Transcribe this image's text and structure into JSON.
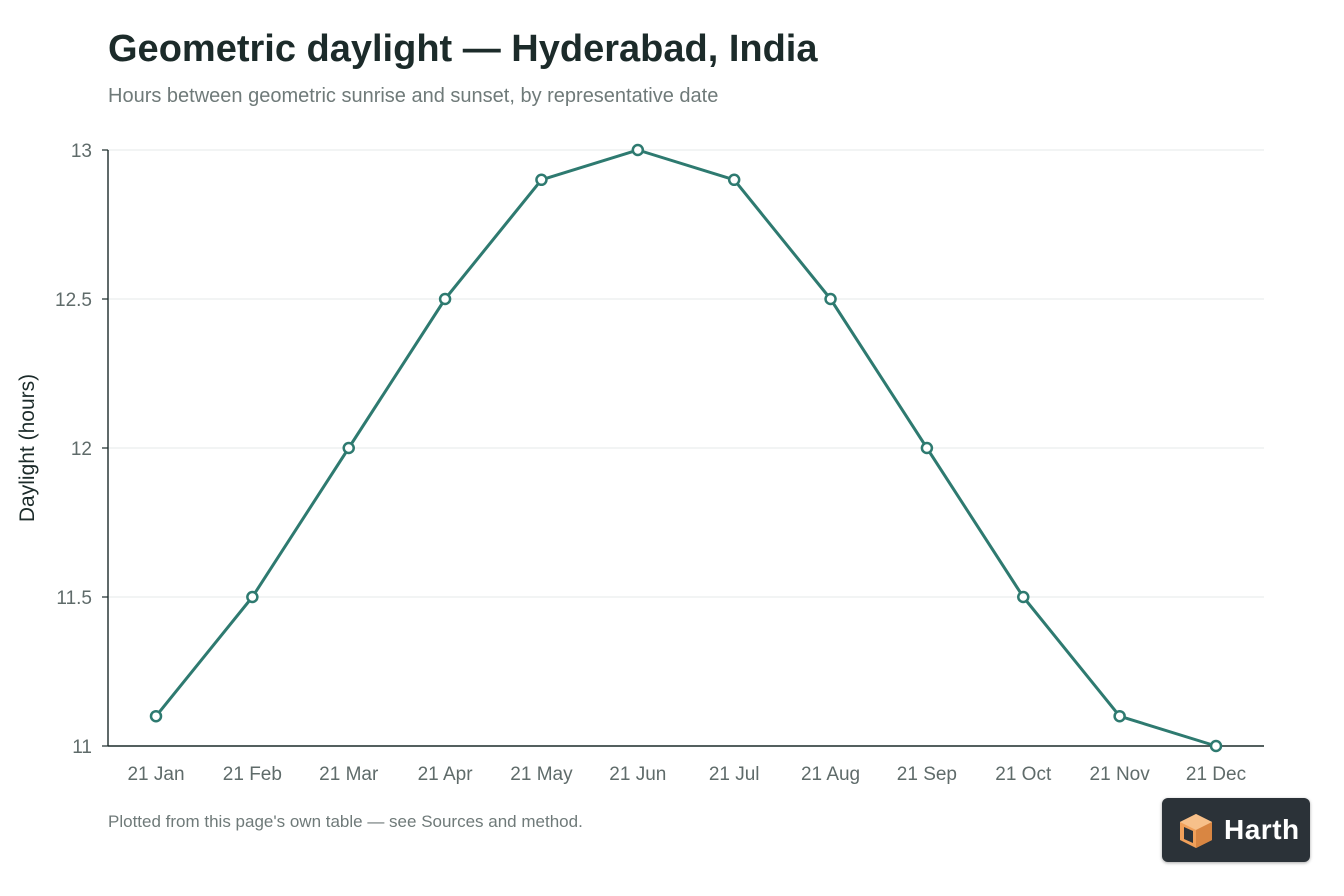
{
  "title": "Geometric daylight — Hyderabad, India",
  "subtitle": "Hours between geometric sunrise and sunset, by representative date",
  "footnote": "Plotted from this page's own table — see Sources and method.",
  "badge": {
    "text": "Harth",
    "icon": "harth-cube-logo-icon",
    "background": "#2b3238",
    "accent": "#f0a05a"
  },
  "chart_data": {
    "type": "line",
    "categories": [
      "21 Jan",
      "21 Feb",
      "21 Mar",
      "21 Apr",
      "21 May",
      "21 Jun",
      "21 Jul",
      "21 Aug",
      "21 Sep",
      "21 Oct",
      "21 Nov",
      "21 Dec"
    ],
    "series": [
      {
        "values": [
          11.1,
          11.5,
          12.0,
          12.5,
          12.9,
          13.0,
          12.9,
          12.5,
          12.0,
          11.5,
          11.1,
          11.0
        ],
        "color": "#2e7a70"
      }
    ],
    "xlabel": "",
    "ylabel": "Daylight (hours)",
    "ylim": [
      11,
      13
    ],
    "yticks": [
      11,
      11.5,
      12,
      12.5,
      13
    ],
    "ytick_labels": [
      "11",
      "11.5",
      "12",
      "12.5",
      "13"
    ],
    "grid": true,
    "legend": "none"
  }
}
